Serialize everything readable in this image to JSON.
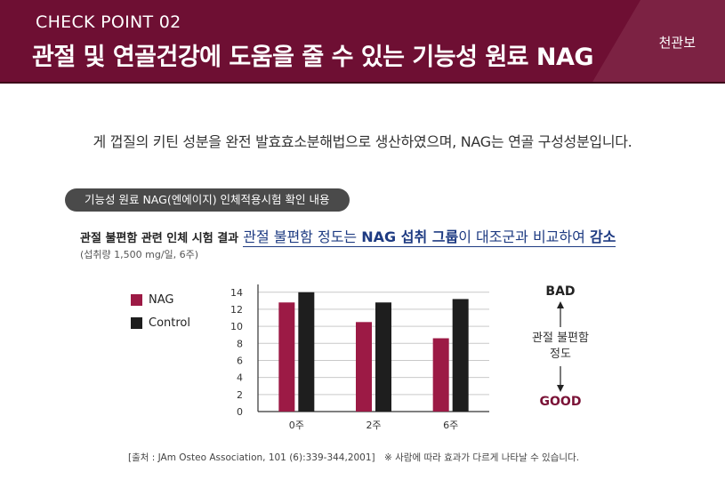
{
  "header": {
    "subtitle": "CHECK POINT 02",
    "title": "관절 및 연골건강에 도움을 줄 수 있는 기능성 원료 NAG",
    "brand": "천관보"
  },
  "description": "게 껍질의 키틴 성분을 완전 발효효소분해법으로 생산하였으며, NAG는 연골 구성성분입니다.",
  "badge": "기능성 원료 NAG(엔에이지) 인체적용시험 확인 내용",
  "result": {
    "lead": "관절 불편함 관련 인체 시험 결과",
    "highlight_pre": "관절 불편함 정도는 ",
    "highlight_bold1": "NAG 섭취 그룹",
    "highlight_mid": "이 대조군과 비교하여 ",
    "highlight_bold2": "감소",
    "note": "(섭취량 1,500 mg/일, 6주)"
  },
  "chart_data": {
    "type": "bar",
    "categories": [
      "0주",
      "2주",
      "6주"
    ],
    "series": [
      {
        "name": "NAG",
        "values": [
          12.8,
          10.5,
          8.6
        ],
        "color": "#9c1a45"
      },
      {
        "name": "Control",
        "values": [
          14.0,
          12.8,
          13.2
        ],
        "color": "#1e1e1e"
      }
    ],
    "yticks": [
      0,
      2,
      4,
      6,
      8,
      10,
      12,
      14
    ],
    "ylim": [
      0,
      14.6
    ],
    "grid": true,
    "legend": "left"
  },
  "scale": {
    "top": "BAD",
    "label_line1": "관절 불편함",
    "label_line2": "정도",
    "bottom": "GOOD"
  },
  "footer": {
    "source": "[출처 : JAm Osteo Association, 101 (6):339-344,2001]",
    "disclaimer": "※ 사람에 따라 효과가 다르게 나타날 수 있습니다."
  }
}
